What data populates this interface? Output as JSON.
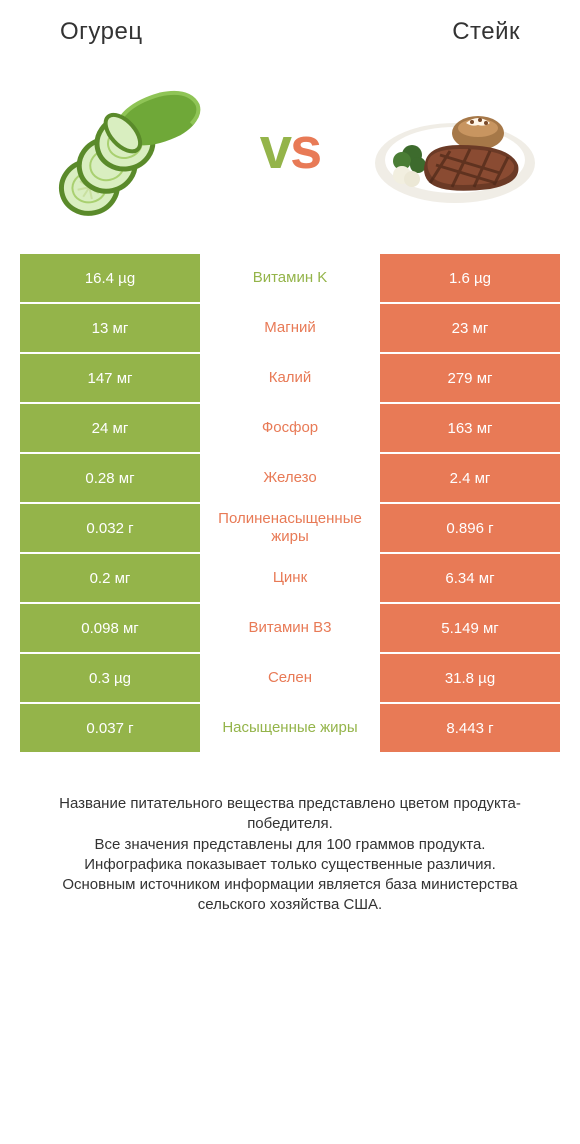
{
  "colors": {
    "left": "#94b44a",
    "right": "#e87a56",
    "vs_left": "#94b44a",
    "vs_right": "#e87a56",
    "background": "#ffffff",
    "text": "#333333"
  },
  "header": {
    "left_title": "Огурец",
    "right_title": "Стейк"
  },
  "vs_label": "vs",
  "comparison": {
    "type": "infographic-table",
    "rows": [
      {
        "nutrient": "Витамин K",
        "left": "16.4 µg",
        "right": "1.6 µg",
        "winner": "left"
      },
      {
        "nutrient": "Магний",
        "left": "13 мг",
        "right": "23 мг",
        "winner": "right"
      },
      {
        "nutrient": "Калий",
        "left": "147 мг",
        "right": "279 мг",
        "winner": "right"
      },
      {
        "nutrient": "Фосфор",
        "left": "24 мг",
        "right": "163 мг",
        "winner": "right"
      },
      {
        "nutrient": "Железо",
        "left": "0.28 мг",
        "right": "2.4 мг",
        "winner": "right"
      },
      {
        "nutrient": "Полиненасыщенные жиры",
        "left": "0.032 г",
        "right": "0.896 г",
        "winner": "right"
      },
      {
        "nutrient": "Цинк",
        "left": "0.2 мг",
        "right": "6.34 мг",
        "winner": "right"
      },
      {
        "nutrient": "Витамин B3",
        "left": "0.098 мг",
        "right": "5.149 мг",
        "winner": "right"
      },
      {
        "nutrient": "Селен",
        "left": "0.3 µg",
        "right": "31.8 µg",
        "winner": "right"
      },
      {
        "nutrient": "Насыщенные жиры",
        "left": "0.037 г",
        "right": "8.443 г",
        "winner": "left"
      }
    ]
  },
  "footer": {
    "line1": "Название питательного вещества представлено цветом продукта-победителя.",
    "line2": "Все значения представлены для 100 граммов продукта.",
    "line3": "Инфографика показывает только существенные различия.",
    "line4": "Основным источником информации является база министерства сельского хозяйства США."
  }
}
